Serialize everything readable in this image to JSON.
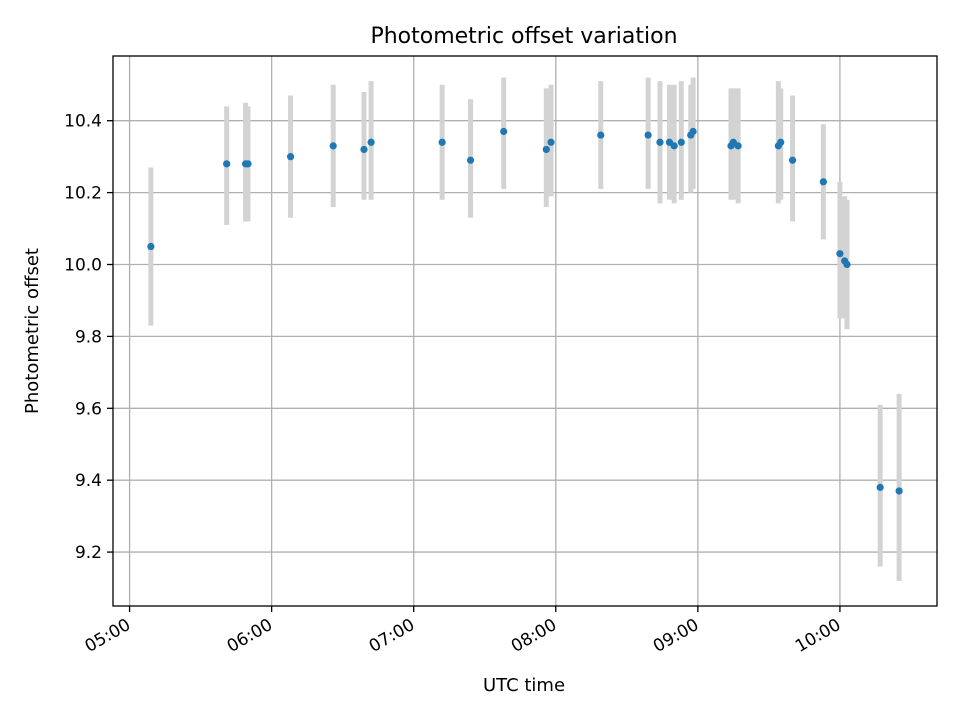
{
  "chart_data": {
    "type": "scatter",
    "title": "Photometric offset variation",
    "xlabel": "UTC time",
    "ylabel": "Photometric offset",
    "xlim": [
      "04:53",
      "10:41"
    ],
    "ylim": [
      9.05,
      10.58
    ],
    "grid": true,
    "x_ticks": [
      "05:00",
      "06:00",
      "07:00",
      "08:00",
      "09:00",
      "10:00"
    ],
    "y_ticks": [
      9.2,
      9.4,
      9.6,
      9.8,
      10.0,
      10.2,
      10.4
    ],
    "y_tick_labels": [
      "9.2",
      "9.4",
      "9.6",
      "9.8",
      "10.0",
      "10.2",
      "10.4"
    ],
    "point_color": "#1f77b4",
    "errorbar_color": "#d3d3d3",
    "points": [
      {
        "x": "05:09",
        "y": 10.05,
        "yerr_low": 9.83,
        "yerr_high": 10.27
      },
      {
        "x": "05:41",
        "y": 10.28,
        "yerr_low": 10.11,
        "yerr_high": 10.44
      },
      {
        "x": "05:49",
        "y": 10.28,
        "yerr_low": 10.12,
        "yerr_high": 10.45
      },
      {
        "x": "05:50",
        "y": 10.28,
        "yerr_low": 10.12,
        "yerr_high": 10.44
      },
      {
        "x": "06:08",
        "y": 10.3,
        "yerr_low": 10.13,
        "yerr_high": 10.47
      },
      {
        "x": "06:26",
        "y": 10.33,
        "yerr_low": 10.16,
        "yerr_high": 10.5
      },
      {
        "x": "06:39",
        "y": 10.32,
        "yerr_low": 10.18,
        "yerr_high": 10.48
      },
      {
        "x": "06:42",
        "y": 10.34,
        "yerr_low": 10.18,
        "yerr_high": 10.51
      },
      {
        "x": "07:12",
        "y": 10.34,
        "yerr_low": 10.18,
        "yerr_high": 10.5
      },
      {
        "x": "07:24",
        "y": 10.29,
        "yerr_low": 10.13,
        "yerr_high": 10.46
      },
      {
        "x": "07:38",
        "y": 10.37,
        "yerr_low": 10.21,
        "yerr_high": 10.52
      },
      {
        "x": "07:56",
        "y": 10.32,
        "yerr_low": 10.16,
        "yerr_high": 10.49
      },
      {
        "x": "07:58",
        "y": 10.34,
        "yerr_low": 10.19,
        "yerr_high": 10.5
      },
      {
        "x": "08:19",
        "y": 10.36,
        "yerr_low": 10.21,
        "yerr_high": 10.51
      },
      {
        "x": "08:39",
        "y": 10.36,
        "yerr_low": 10.21,
        "yerr_high": 10.52
      },
      {
        "x": "08:44",
        "y": 10.34,
        "yerr_low": 10.17,
        "yerr_high": 10.51
      },
      {
        "x": "08:48",
        "y": 10.34,
        "yerr_low": 10.18,
        "yerr_high": 10.5
      },
      {
        "x": "08:50",
        "y": 10.33,
        "yerr_low": 10.17,
        "yerr_high": 10.5
      },
      {
        "x": "08:53",
        "y": 10.34,
        "yerr_low": 10.18,
        "yerr_high": 10.51
      },
      {
        "x": "08:57",
        "y": 10.36,
        "yerr_low": 10.2,
        "yerr_high": 10.5
      },
      {
        "x": "08:58",
        "y": 10.37,
        "yerr_low": 10.21,
        "yerr_high": 10.52
      },
      {
        "x": "09:14",
        "y": 10.33,
        "yerr_low": 10.18,
        "yerr_high": 10.49
      },
      {
        "x": "09:15",
        "y": 10.34,
        "yerr_low": 10.18,
        "yerr_high": 10.49
      },
      {
        "x": "09:17",
        "y": 10.33,
        "yerr_low": 10.17,
        "yerr_high": 10.49
      },
      {
        "x": "09:34",
        "y": 10.33,
        "yerr_low": 10.17,
        "yerr_high": 10.51
      },
      {
        "x": "09:35",
        "y": 10.34,
        "yerr_low": 10.18,
        "yerr_high": 10.49
      },
      {
        "x": "09:40",
        "y": 10.29,
        "yerr_low": 10.12,
        "yerr_high": 10.47
      },
      {
        "x": "09:53",
        "y": 10.23,
        "yerr_low": 10.07,
        "yerr_high": 10.39
      },
      {
        "x": "10:00",
        "y": 10.03,
        "yerr_low": 9.85,
        "yerr_high": 10.23
      },
      {
        "x": "10:02",
        "y": 10.01,
        "yerr_low": 9.85,
        "yerr_high": 10.19
      },
      {
        "x": "10:03",
        "y": 10.0,
        "yerr_low": 9.82,
        "yerr_high": 10.18
      },
      {
        "x": "10:17",
        "y": 9.38,
        "yerr_low": 9.16,
        "yerr_high": 9.61
      },
      {
        "x": "10:25",
        "y": 9.37,
        "yerr_low": 9.12,
        "yerr_high": 9.64
      }
    ]
  }
}
